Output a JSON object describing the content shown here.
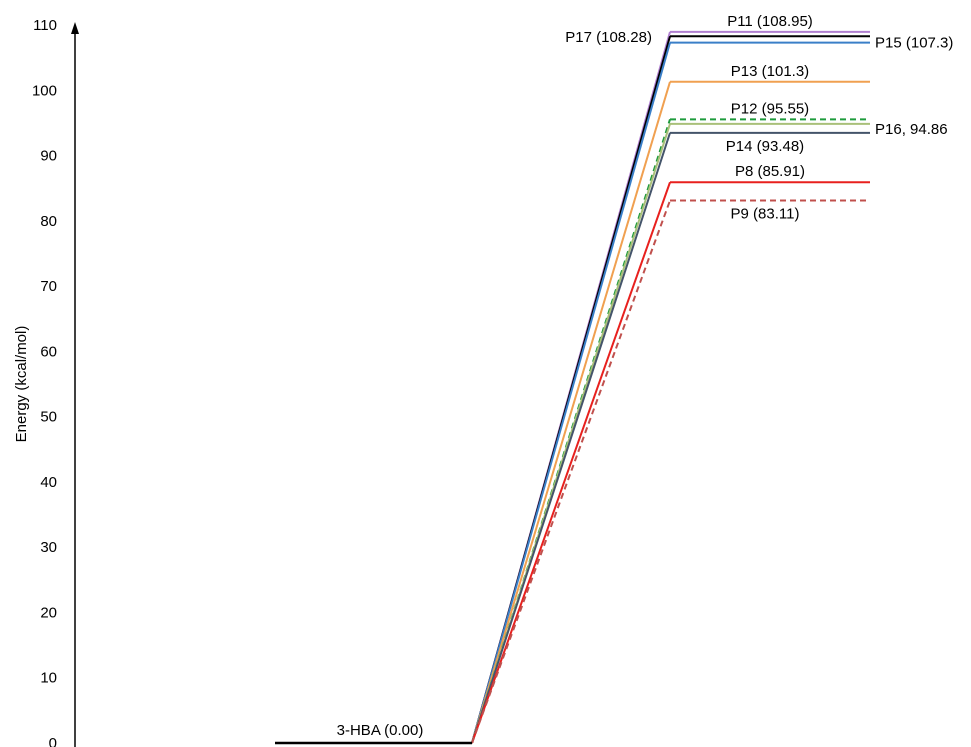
{
  "chart_data": {
    "type": "line",
    "title": "",
    "ylabel": "Energy (kcal/mol)",
    "ylim": [
      0,
      110
    ],
    "yticks": [
      "0",
      "10",
      "20",
      "30",
      "40",
      "50",
      "60",
      "70",
      "80",
      "90",
      "100",
      "110"
    ],
    "reactant": {
      "label": "3-HBA (0.00)",
      "value": 0.0,
      "color": "#000000"
    },
    "products": [
      {
        "name": "P11",
        "label": "P11 (108.95)",
        "value": 108.95,
        "color": "#b07fd0",
        "dashed": false,
        "label_side": "above"
      },
      {
        "name": "P17",
        "label": "P17 (108.28)",
        "value": 108.28,
        "color": "#000000",
        "dashed": false,
        "label_side": "left"
      },
      {
        "name": "P15",
        "label": "P15 (107.3)",
        "value": 107.3,
        "color": "#3a7fc8",
        "dashed": false,
        "label_side": "right"
      },
      {
        "name": "P13",
        "label": "P13 (101.3)",
        "value": 101.3,
        "color": "#f0a050",
        "dashed": false,
        "label_side": "above"
      },
      {
        "name": "P12",
        "label": "P12 (95.55)",
        "value": 95.55,
        "color": "#1e9b3c",
        "dashed": true,
        "label_side": "above"
      },
      {
        "name": "P16",
        "label": "P16, 94.86",
        "value": 94.86,
        "color": "#a9c07a",
        "dashed": false,
        "label_side": "right"
      },
      {
        "name": "P14",
        "label": "P14 (93.48)",
        "value": 93.48,
        "color": "#44546a",
        "dashed": false,
        "label_side": "below"
      },
      {
        "name": "P8",
        "label": "P8 (85.91)",
        "value": 85.91,
        "color": "#e8201e",
        "dashed": false,
        "label_side": "above"
      },
      {
        "name": "P9",
        "label": "P9 (83.11)",
        "value": 83.11,
        "color": "#c0504d",
        "dashed": true,
        "label_side": "below"
      }
    ]
  }
}
